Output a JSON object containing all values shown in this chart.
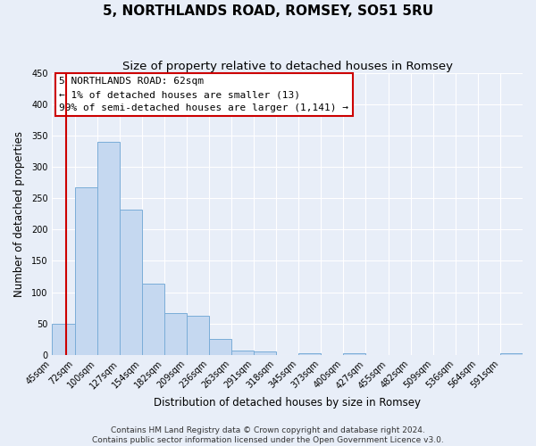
{
  "title": "5, NORTHLANDS ROAD, ROMSEY, SO51 5RU",
  "subtitle": "Size of property relative to detached houses in Romsey",
  "xlabel": "Distribution of detached houses by size in Romsey",
  "ylabel": "Number of detached properties",
  "bar_labels": [
    "45sqm",
    "72sqm",
    "100sqm",
    "127sqm",
    "154sqm",
    "182sqm",
    "209sqm",
    "236sqm",
    "263sqm",
    "291sqm",
    "318sqm",
    "345sqm",
    "373sqm",
    "400sqm",
    "427sqm",
    "455sqm",
    "482sqm",
    "509sqm",
    "536sqm",
    "564sqm",
    "591sqm"
  ],
  "bar_values": [
    50,
    267,
    340,
    232,
    113,
    67,
    62,
    25,
    7,
    5,
    0,
    3,
    0,
    2,
    0,
    0,
    0,
    0,
    0,
    0,
    2
  ],
  "bar_color": "#c5d8f0",
  "bar_edgecolor": "#7aadd8",
  "background_color": "#e8eef8",
  "plot_bg_color": "#e8eef8",
  "grid_color": "#ffffff",
  "ylim": [
    0,
    450
  ],
  "yticks": [
    0,
    50,
    100,
    150,
    200,
    250,
    300,
    350,
    400,
    450
  ],
  "annotation_box_text_line1": "5 NORTHLANDS ROAD: 62sqm",
  "annotation_box_text_line2": "← 1% of detached houses are smaller (13)",
  "annotation_box_text_line3": "99% of semi-detached houses are larger (1,141) →",
  "annotation_box_color": "#ffffff",
  "annotation_box_edgecolor": "#cc0000",
  "red_line_color": "#cc0000",
  "footer_line1": "Contains HM Land Registry data © Crown copyright and database right 2024.",
  "footer_line2": "Contains public sector information licensed under the Open Government Licence v3.0.",
  "title_fontsize": 11,
  "subtitle_fontsize": 9.5,
  "axis_label_fontsize": 8.5,
  "tick_fontsize": 7,
  "annotation_fontsize": 8,
  "footer_fontsize": 6.5
}
